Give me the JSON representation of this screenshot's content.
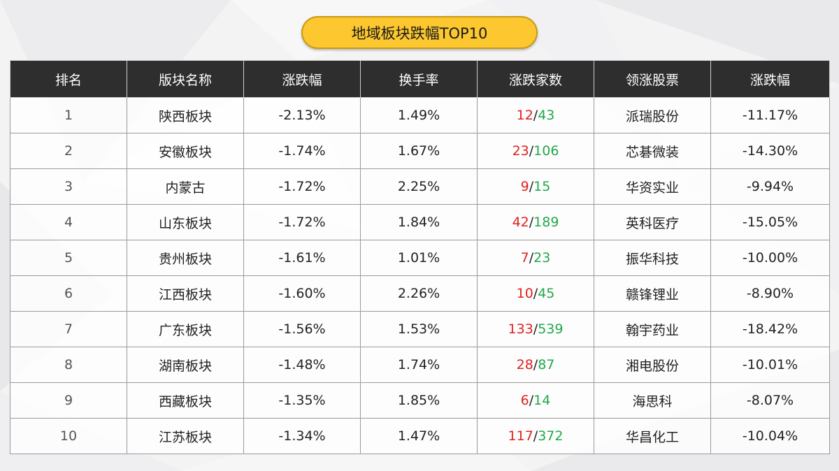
{
  "title": "地域板块跌幅TOP10",
  "colors": {
    "pill": "#fcc72f",
    "header_bg": "#2e2e2e",
    "rise": "#e0221e",
    "fall": "#21a84a"
  },
  "headers": [
    "排名",
    "版块名称",
    "涨跌幅",
    "换手率",
    "涨跌家数",
    "领涨股票",
    "涨跌幅"
  ],
  "rows": [
    {
      "rank": "1",
      "name": "陕西板块",
      "change": "-2.13%",
      "turnover": "1.49%",
      "up": "12",
      "sep": "/",
      "down": "43",
      "lead": "派瑞股份",
      "lead_change": "-11.17%"
    },
    {
      "rank": "2",
      "name": "安徽板块",
      "change": "-1.74%",
      "turnover": "1.67%",
      "up": "23",
      "sep": "/",
      "down": "106",
      "lead": "芯碁微装",
      "lead_change": "-14.30%"
    },
    {
      "rank": "3",
      "name": "内蒙古",
      "change": "-1.72%",
      "turnover": "2.25%",
      "up": "9",
      "sep": "/",
      "down": "15",
      "lead": "华资实业",
      "lead_change": "-9.94%"
    },
    {
      "rank": "4",
      "name": "山东板块",
      "change": "-1.72%",
      "turnover": "1.84%",
      "up": "42",
      "sep": "/",
      "down": "189",
      "lead": "英科医疗",
      "lead_change": "-15.05%"
    },
    {
      "rank": "5",
      "name": "贵州板块",
      "change": "-1.61%",
      "turnover": "1.01%",
      "up": "7",
      "sep": "/",
      "down": "23",
      "lead": "振华科技",
      "lead_change": "-10.00%"
    },
    {
      "rank": "6",
      "name": "江西板块",
      "change": "-1.60%",
      "turnover": "2.26%",
      "up": "10",
      "sep": "/",
      "down": "45",
      "lead": "赣锋锂业",
      "lead_change": "-8.90%"
    },
    {
      "rank": "7",
      "name": "广东板块",
      "change": "-1.56%",
      "turnover": "1.53%",
      "up": "133",
      "sep": "/",
      "down": "539",
      "lead": "翰宇药业",
      "lead_change": "-18.42%"
    },
    {
      "rank": "8",
      "name": "湖南板块",
      "change": "-1.48%",
      "turnover": "1.74%",
      "up": "28",
      "sep": "/",
      "down": "87",
      "lead": "湘电股份",
      "lead_change": "-10.01%"
    },
    {
      "rank": "9",
      "name": "西藏板块",
      "change": "-1.35%",
      "turnover": "1.85%",
      "up": "6",
      "sep": "/",
      "down": "14",
      "lead": "海思科",
      "lead_change": "-8.07%"
    },
    {
      "rank": "10",
      "name": "江苏板块",
      "change": "-1.34%",
      "turnover": "1.47%",
      "up": "117",
      "sep": "/",
      "down": "372",
      "lead": "华昌化工",
      "lead_change": "-10.04%"
    }
  ]
}
